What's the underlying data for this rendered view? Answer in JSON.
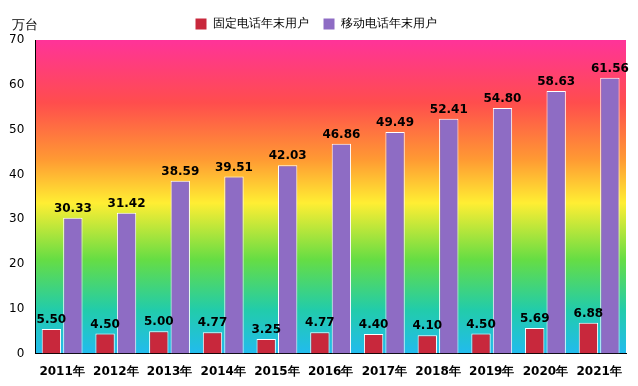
{
  "chart_data": {
    "type": "bar",
    "y_label": "万台",
    "categories": [
      "2011年",
      "2012年",
      "2013年",
      "2014年",
      "2015年",
      "2016年",
      "2017年",
      "2018年",
      "2019年",
      "2020年",
      "2021年"
    ],
    "series": [
      {
        "name": "固定电话年末用户",
        "color": "#c8283c",
        "values": [
          5.5,
          4.5,
          5.0,
          4.77,
          3.25,
          4.77,
          4.4,
          4.1,
          4.5,
          5.69,
          6.88
        ],
        "value_labels": [
          "5.50",
          "4.50",
          "5.00",
          "4.77",
          "3.25",
          "4.77",
          "4.40",
          "4.10",
          "4.50",
          "5.69",
          "6.88"
        ]
      },
      {
        "name": "移动电话年末用户",
        "color": "#8e6cc4",
        "values": [
          30.33,
          31.42,
          38.59,
          39.51,
          42.03,
          46.86,
          49.49,
          52.41,
          54.8,
          58.63,
          61.56
        ],
        "value_labels": [
          "30.33",
          "31.42",
          "38.59",
          "39.51",
          "42.03",
          "46.86",
          "49.49",
          "52.41",
          "54.80",
          "58.63",
          "61.56"
        ]
      }
    ],
    "ylim": [
      0,
      70
    ],
    "yticks": [
      0,
      10,
      20,
      30,
      40,
      50,
      60,
      70
    ],
    "grid": false,
    "legend": "top",
    "data_labels": true
  }
}
